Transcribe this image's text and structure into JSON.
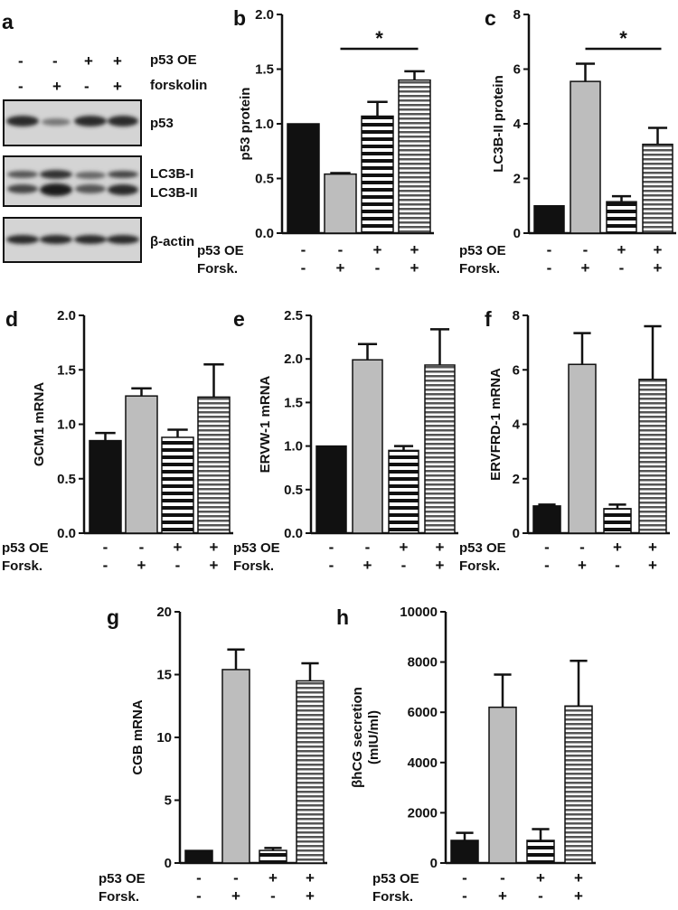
{
  "colors": {
    "black_bar": "#111111",
    "gray_bar": "#bdbdbd",
    "outline": "#111111"
  },
  "blot": {
    "letter": "a",
    "rows": [
      {
        "label": "p53 OE",
        "symbols": [
          "-",
          "-",
          "+",
          "+"
        ]
      },
      {
        "label": "forskolin",
        "symbols": [
          "-",
          "+",
          "-",
          "+"
        ]
      }
    ],
    "bands": [
      "p53",
      "LC3B-I",
      "LC3B-II",
      "β-actin"
    ]
  },
  "chart_data": [
    {
      "id": "b",
      "letter": "b",
      "type": "bar",
      "ylabel": "p53 protein",
      "ylim": [
        0,
        2.0
      ],
      "yticks": [
        "0.0",
        "0.5",
        "1.0",
        "1.5",
        "2.0"
      ],
      "tick_values": [
        0,
        0.5,
        1.0,
        1.5,
        2.0
      ],
      "values": [
        1.0,
        0.54,
        1.07,
        1.4
      ],
      "errors": [
        0,
        0.01,
        0.13,
        0.08
      ],
      "patterns": [
        "black",
        "gray",
        "hstripe-wide",
        "hstripe-narrow"
      ],
      "significance": {
        "from": 1,
        "to": 3,
        "label": "*"
      },
      "conditions": [
        {
          "label": "p53 OE",
          "symbols": [
            "-",
            "-",
            "+",
            "+"
          ]
        },
        {
          "label": "Forsk.",
          "symbols": [
            "-",
            "+",
            "-",
            "+"
          ]
        }
      ]
    },
    {
      "id": "c",
      "letter": "c",
      "type": "bar",
      "ylabel": "LC3B-II protein",
      "ylim": [
        0,
        8
      ],
      "yticks": [
        "0",
        "2",
        "4",
        "6",
        "8"
      ],
      "tick_values": [
        0,
        2,
        4,
        6,
        8
      ],
      "values": [
        1.0,
        5.55,
        1.15,
        3.25
      ],
      "errors": [
        0,
        0.65,
        0.2,
        0.6
      ],
      "patterns": [
        "black",
        "gray",
        "hstripe-wide",
        "hstripe-narrow"
      ],
      "significance": {
        "from": 1,
        "to": 3,
        "label": "*"
      },
      "conditions": [
        {
          "label": "p53 OE",
          "symbols": [
            "-",
            "-",
            "+",
            "+"
          ]
        },
        {
          "label": "Forsk.",
          "symbols": [
            "-",
            "+",
            "-",
            "+"
          ]
        }
      ]
    },
    {
      "id": "d",
      "letter": "d",
      "type": "bar",
      "ylabel": "GCM1 mRNA",
      "ylim": [
        0,
        2.0
      ],
      "yticks": [
        "0.0",
        "0.5",
        "1.0",
        "1.5",
        "2.0"
      ],
      "tick_values": [
        0,
        0.5,
        1.0,
        1.5,
        2.0
      ],
      "values": [
        0.85,
        1.26,
        0.88,
        1.25
      ],
      "errors": [
        0.07,
        0.07,
        0.07,
        0.3
      ],
      "patterns": [
        "black",
        "gray",
        "hstripe-wide",
        "hstripe-narrow"
      ],
      "conditions": [
        {
          "label": "p53 OE",
          "symbols": [
            "-",
            "-",
            "+",
            "+"
          ]
        },
        {
          "label": "Forsk.",
          "symbols": [
            "-",
            "+",
            "-",
            "+"
          ]
        }
      ]
    },
    {
      "id": "e",
      "letter": "e",
      "type": "bar",
      "ylabel": "ERVW-1 mRNA",
      "ylim": [
        0,
        2.5
      ],
      "yticks": [
        "0.0",
        "0.5",
        "1.0",
        "1.5",
        "2.0",
        "2.5"
      ],
      "tick_values": [
        0,
        0.5,
        1.0,
        1.5,
        2.0,
        2.5
      ],
      "values": [
        1.0,
        1.99,
        0.95,
        1.93
      ],
      "errors": [
        0,
        0.18,
        0.05,
        0.41
      ],
      "patterns": [
        "black",
        "gray",
        "hstripe-wide",
        "hstripe-narrow"
      ],
      "conditions": [
        {
          "label": "p53 OE",
          "symbols": [
            "-",
            "-",
            "+",
            "+"
          ]
        },
        {
          "label": "Forsk.",
          "symbols": [
            "-",
            "+",
            "-",
            "+"
          ]
        }
      ]
    },
    {
      "id": "f",
      "letter": "f",
      "type": "bar",
      "ylabel": "ERVFRD-1 mRNA",
      "ylim": [
        0,
        8
      ],
      "yticks": [
        "0",
        "2",
        "4",
        "6",
        "8"
      ],
      "tick_values": [
        0,
        2,
        4,
        6,
        8
      ],
      "values": [
        1.0,
        6.2,
        0.9,
        5.65
      ],
      "errors": [
        0.05,
        1.15,
        0.15,
        1.95
      ],
      "patterns": [
        "black",
        "gray",
        "hstripe-wide",
        "hstripe-narrow"
      ],
      "conditions": [
        {
          "label": "p53 OE",
          "symbols": [
            "-",
            "-",
            "+",
            "+"
          ]
        },
        {
          "label": "Forsk.",
          "symbols": [
            "-",
            "+",
            "-",
            "+"
          ]
        }
      ]
    },
    {
      "id": "g",
      "letter": "g",
      "type": "bar",
      "ylabel": "CGB mRNA",
      "ylim": [
        0,
        20
      ],
      "yticks": [
        "0",
        "5",
        "10",
        "15",
        "20"
      ],
      "tick_values": [
        0,
        5,
        10,
        15,
        20
      ],
      "values": [
        1.0,
        15.4,
        1.0,
        14.5
      ],
      "errors": [
        0,
        1.6,
        0.2,
        1.4
      ],
      "patterns": [
        "black",
        "gray",
        "hstripe-wide",
        "hstripe-narrow"
      ],
      "conditions": [
        {
          "label": "p53 OE",
          "symbols": [
            "-",
            "-",
            "+",
            "+"
          ]
        },
        {
          "label": "Forsk.",
          "symbols": [
            "-",
            "+",
            "-",
            "+"
          ]
        }
      ]
    },
    {
      "id": "h",
      "letter": "h",
      "type": "bar",
      "ylabel": "βhCG secretion",
      "ylabel2": "(mIU/ml)",
      "ylim": [
        0,
        10000
      ],
      "yticks": [
        "0",
        "2000",
        "4000",
        "6000",
        "8000",
        "10000"
      ],
      "tick_values": [
        0,
        2000,
        4000,
        6000,
        8000,
        10000
      ],
      "values": [
        900,
        6200,
        900,
        6250
      ],
      "errors": [
        300,
        1300,
        450,
        1800
      ],
      "patterns": [
        "black",
        "gray",
        "hstripe-wide",
        "hstripe-narrow"
      ],
      "conditions": [
        {
          "label": "p53 OE",
          "symbols": [
            "-",
            "-",
            "+",
            "+"
          ]
        },
        {
          "label": "Forsk.",
          "symbols": [
            "-",
            "+",
            "-",
            "+"
          ]
        }
      ]
    }
  ]
}
